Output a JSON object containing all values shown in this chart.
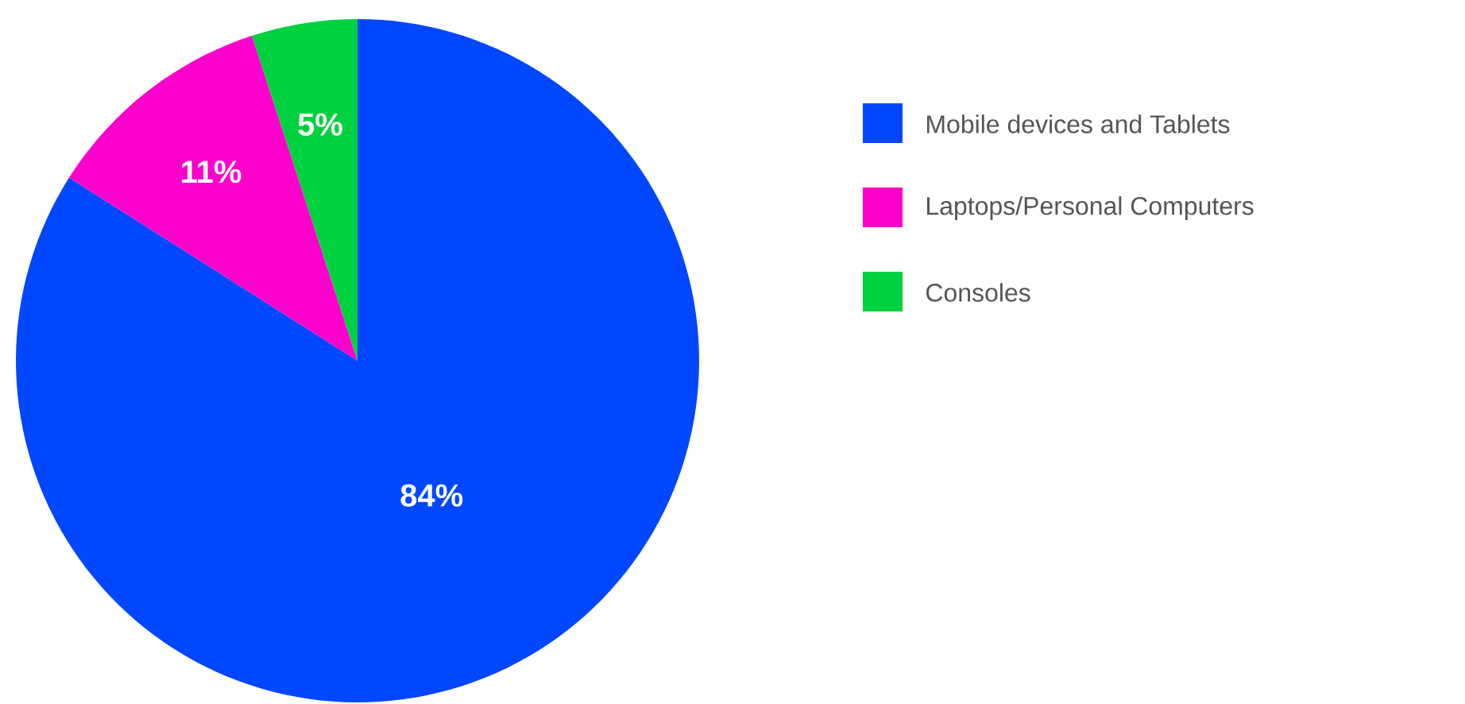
{
  "chart_data": {
    "type": "pie",
    "categories": [
      "Mobile devices and Tablets",
      "Laptops/Personal Computers",
      "Consoles"
    ],
    "values": [
      84,
      11,
      5
    ],
    "value_labels": [
      "84%",
      "11%",
      "5%"
    ],
    "colors": [
      "#0047ff",
      "#ff00cc",
      "#00d13f"
    ],
    "legend": "right"
  }
}
